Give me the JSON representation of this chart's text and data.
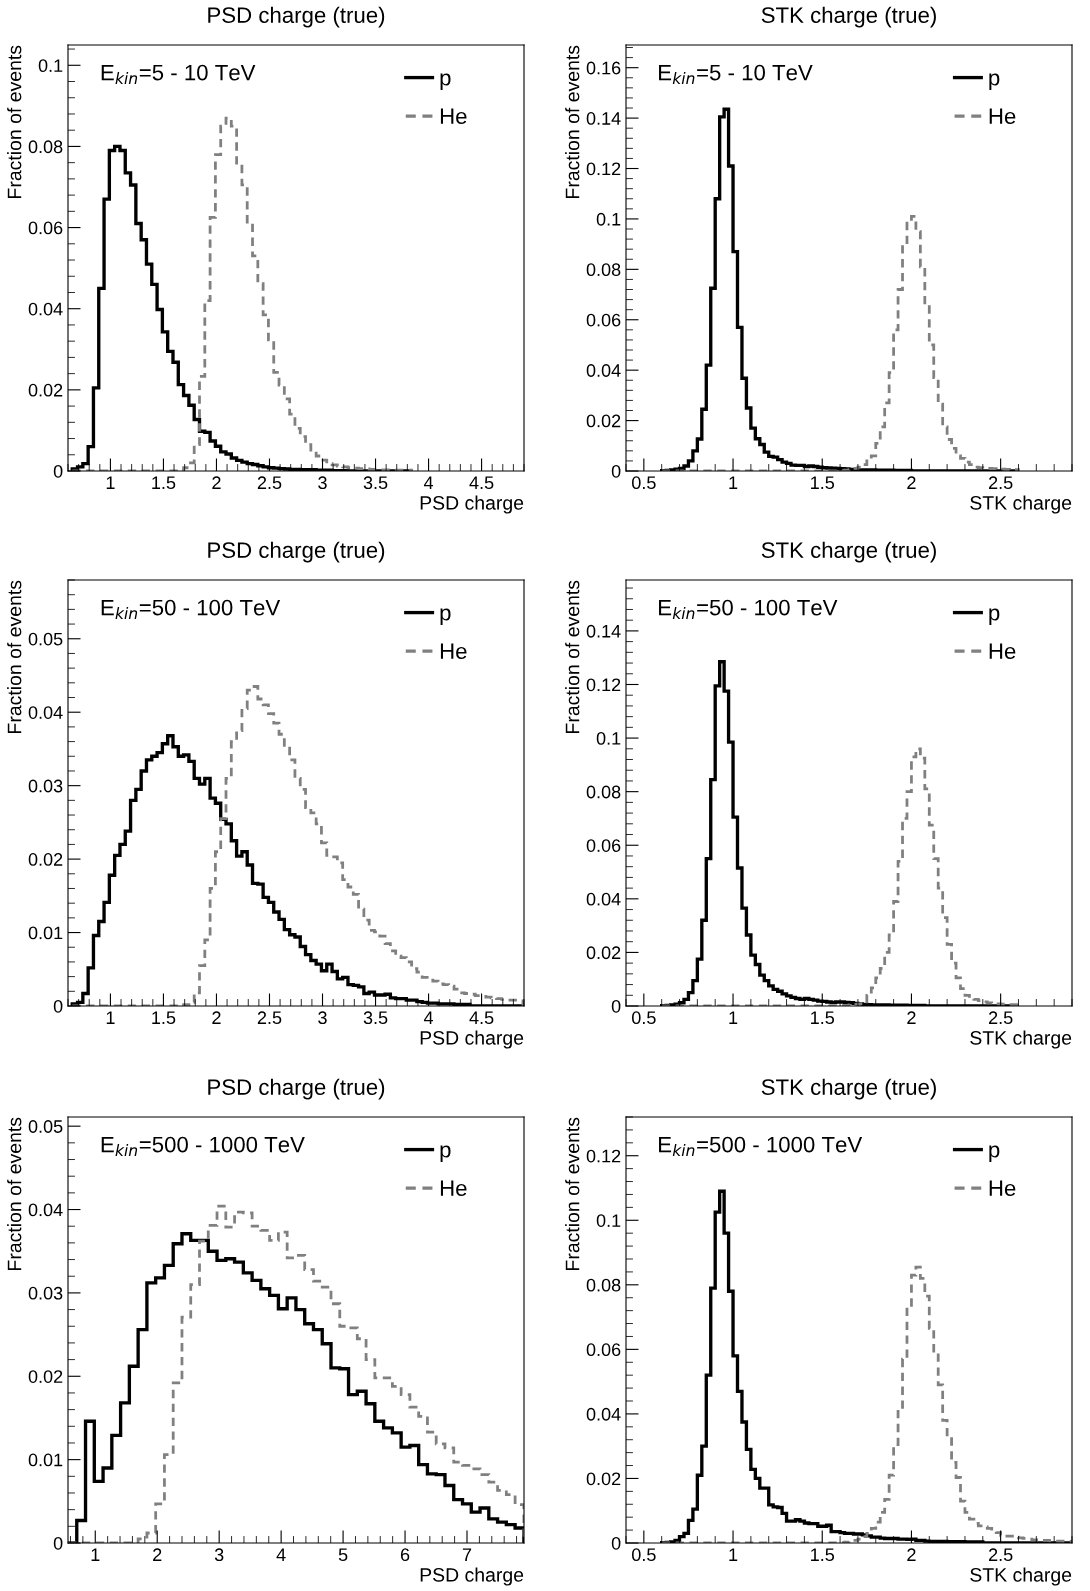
{
  "chart_data": [
    {
      "type": "histogram",
      "title": "PSD charge (true)",
      "xlabel": "PSD charge",
      "ylabel": "Fraction of events",
      "xlim": [
        0.6,
        4.9
      ],
      "ylim": [
        0,
        0.105
      ],
      "xticks": [
        1,
        1.5,
        2,
        2.5,
        3,
        3.5,
        4,
        4.5
      ],
      "yticks": [
        0,
        0.02,
        0.04,
        0.06,
        0.08,
        0.1
      ],
      "legend": "top right",
      "annotations": [
        "E$_{kin}$=5 - 10 TeV"
      ],
      "bins": [
        0.64,
        0.69,
        0.74,
        0.79,
        0.84,
        0.89,
        0.94,
        0.99,
        1.04,
        1.09,
        1.14,
        1.19,
        1.24,
        1.29,
        1.34,
        1.39,
        1.44,
        1.49,
        1.54,
        1.59,
        1.64,
        1.69,
        1.74,
        1.79,
        1.84,
        1.89,
        1.94,
        1.99,
        2.04,
        2.09,
        2.14,
        2.19,
        2.24,
        2.29,
        2.34,
        2.39,
        2.44,
        2.49,
        2.54,
        2.59,
        2.64,
        2.69,
        2.74,
        2.79,
        2.84,
        2.89,
        2.94,
        2.99,
        3.04,
        3.09,
        3.14,
        3.19,
        3.24,
        3.29,
        3.34,
        3.39,
        3.44,
        3.49,
        3.54,
        3.59,
        3.64,
        3.69,
        3.74,
        3.79,
        3.84
      ],
      "series": [
        {
          "name": "p",
          "color": "#000000",
          "line_style": "solid",
          "values": [
            0.0005,
            0.001,
            0.0018,
            0.006,
            0.0205,
            0.045,
            0.067,
            0.079,
            0.08,
            0.079,
            0.0735,
            0.0705,
            0.061,
            0.057,
            0.051,
            0.046,
            0.0398,
            0.0343,
            0.0295,
            0.0268,
            0.0213,
            0.0186,
            0.0162,
            0.0127,
            0.0098,
            0.0095,
            0.0074,
            0.0061,
            0.0047,
            0.0042,
            0.0032,
            0.0026,
            0.0022,
            0.0018,
            0.0016,
            0.0013,
            0.001,
            0.0008,
            0.0007,
            0.0006,
            0.0005,
            0.0004,
            0.0004,
            0.0003,
            0.0003,
            0.0003,
            0.0002,
            0.0002,
            0.0002,
            0.0001,
            0.0001,
            0.0001,
            0,
            0,
            0,
            0,
            0,
            0,
            0,
            0,
            0,
            0,
            0,
            0
          ]
        },
        {
          "name": "He",
          "color": "#808080",
          "line_style": "dashed",
          "values": [
            0,
            0,
            0,
            0,
            0,
            0,
            0,
            0,
            0,
            0,
            0,
            0,
            0,
            0,
            0,
            0,
            0,
            0,
            0,
            0,
            0.0003,
            0.0008,
            0.002,
            0.0065,
            0.0233,
            0.042,
            0.0625,
            0.078,
            0.085,
            0.087,
            0.085,
            0.0755,
            0.0705,
            0.061,
            0.053,
            0.0462,
            0.0385,
            0.0323,
            0.0243,
            0.0212,
            0.0178,
            0.014,
            0.0105,
            0.0085,
            0.0065,
            0.0048,
            0.0037,
            0.0027,
            0.0018,
            0.0015,
            0.0012,
            0.001,
            0.0008,
            0.0007,
            0.0006,
            0.0005,
            0.0004,
            0.0004,
            0.0003,
            0.0003,
            0.0002,
            0.0002,
            0.0002,
            0.0002
          ]
        }
      ]
    },
    {
      "type": "histogram",
      "title": "STK charge (true)",
      "xlabel": "STK charge",
      "ylabel": "Fraction of events",
      "xlim": [
        0.4,
        2.9
      ],
      "ylim": [
        0,
        0.169
      ],
      "xticks": [
        0.5,
        1,
        1.5,
        2,
        2.5
      ],
      "yticks": [
        0,
        0.02,
        0.04,
        0.06,
        0.08,
        0.1,
        0.12,
        0.14,
        0.16
      ],
      "legend": "top right",
      "annotations": [
        "E$_{kin}$=5 - 10 TeV"
      ],
      "bins": [
        0.6,
        0.625,
        0.65,
        0.675,
        0.7,
        0.725,
        0.75,
        0.775,
        0.8,
        0.825,
        0.85,
        0.875,
        0.9,
        0.925,
        0.95,
        0.975,
        1.0,
        1.025,
        1.05,
        1.075,
        1.1,
        1.125,
        1.15,
        1.175,
        1.2,
        1.225,
        1.25,
        1.275,
        1.3,
        1.325,
        1.35,
        1.375,
        1.4,
        1.425,
        1.45,
        1.475,
        1.5,
        1.525,
        1.55,
        1.575,
        1.6,
        1.625,
        1.65,
        1.675,
        1.7,
        1.725,
        1.75,
        1.775,
        1.8,
        1.825,
        1.85,
        1.875,
        1.9,
        1.925,
        1.95,
        1.975,
        2.0,
        2.025,
        2.05,
        2.075,
        2.1,
        2.125,
        2.15,
        2.175,
        2.2,
        2.225,
        2.25,
        2.275,
        2.3,
        2.325,
        2.35,
        2.375,
        2.4,
        2.425,
        2.45,
        2.475,
        2.5,
        2.525,
        2.55,
        2.575,
        2.6
      ],
      "series": [
        {
          "name": "p",
          "color": "#000000",
          "line_style": "solid",
          "values": [
            0.0001,
            0.0002,
            0.0004,
            0.0007,
            0.001,
            0.002,
            0.004,
            0.008,
            0.0127,
            0.0245,
            0.042,
            0.0725,
            0.108,
            0.1405,
            0.1435,
            0.121,
            0.087,
            0.057,
            0.0368,
            0.025,
            0.017,
            0.0128,
            0.0105,
            0.0075,
            0.0058,
            0.0055,
            0.0045,
            0.0035,
            0.003,
            0.0023,
            0.0022,
            0.0022,
            0.0018,
            0.002,
            0.0018,
            0.0015,
            0.0013,
            0.0012,
            0.0011,
            0.001,
            0.0009,
            0.0008,
            0.0006,
            0.0005,
            0.0004,
            0.0004,
            0.0004,
            0.0004,
            0.0003,
            0.0003,
            0.0003,
            0.0003,
            0.0002,
            0.0002,
            0.0002,
            0.0002,
            0,
            0,
            0,
            0,
            0,
            0,
            0,
            0,
            0,
            0,
            0,
            0,
            0,
            0,
            0,
            0,
            0,
            0,
            0,
            0,
            0,
            0,
            0,
            0
          ]
        },
        {
          "name": "He",
          "color": "#808080",
          "line_style": "dashed",
          "values": [
            0,
            0,
            0,
            0,
            0,
            0,
            0,
            0,
            0,
            0,
            0,
            0,
            0,
            0,
            0,
            0,
            0,
            0,
            0,
            0,
            0,
            0,
            0,
            0,
            0,
            0,
            0,
            0,
            0,
            0,
            0,
            0,
            0,
            0,
            0,
            0,
            0,
            0,
            0,
            0,
            0.0001,
            0.0003,
            0.0005,
            0.001,
            0.0015,
            0.0025,
            0.004,
            0.006,
            0.011,
            0.0175,
            0.027,
            0.039,
            0.056,
            0.072,
            0.09,
            0.099,
            0.101,
            0.095,
            0.081,
            0.066,
            0.05,
            0.037,
            0.0265,
            0.0175,
            0.0125,
            0.009,
            0.006,
            0.005,
            0.0035,
            0.0025,
            0.0015,
            0.0013,
            0.0011,
            0.001,
            0.0009,
            0.0008,
            0.0007,
            0.0006,
            0.0005,
            0.0005
          ]
        }
      ]
    },
    {
      "type": "histogram",
      "title": "PSD charge (true)",
      "xlabel": "PSD charge",
      "ylabel": "Fraction of events",
      "xlim": [
        0.6,
        4.9
      ],
      "ylim": [
        0,
        0.058
      ],
      "xticks": [
        1,
        1.5,
        2,
        2.5,
        3,
        3.5,
        4,
        4.5
      ],
      "yticks": [
        0,
        0.01,
        0.02,
        0.03,
        0.04,
        0.05
      ],
      "legend": "top right",
      "annotations": [
        "E$_{kin}$=50 - 100 TeV"
      ],
      "bins": [
        0.64,
        0.69,
        0.74,
        0.79,
        0.84,
        0.89,
        0.94,
        0.99,
        1.04,
        1.09,
        1.14,
        1.19,
        1.24,
        1.29,
        1.34,
        1.39,
        1.44,
        1.49,
        1.54,
        1.59,
        1.64,
        1.69,
        1.74,
        1.79,
        1.84,
        1.89,
        1.94,
        1.99,
        2.04,
        2.09,
        2.14,
        2.19,
        2.24,
        2.29,
        2.34,
        2.39,
        2.44,
        2.49,
        2.54,
        2.59,
        2.64,
        2.69,
        2.74,
        2.79,
        2.84,
        2.89,
        2.94,
        2.99,
        3.04,
        3.09,
        3.14,
        3.19,
        3.24,
        3.29,
        3.34,
        3.39,
        3.44,
        3.49,
        3.54,
        3.59,
        3.64,
        3.69,
        3.74,
        3.79,
        3.84,
        3.89,
        3.94,
        3.99,
        4.04,
        4.09,
        4.14,
        4.19,
        4.24,
        4.29,
        4.34,
        4.39,
        4.44,
        4.49,
        4.54,
        4.59,
        4.64,
        4.69,
        4.74,
        4.79,
        4.84,
        4.89
      ],
      "series": [
        {
          "name": "p",
          "color": "#000000",
          "line_style": "solid",
          "values": [
            0.0003,
            0.0005,
            0.0017,
            0.0052,
            0.0096,
            0.0115,
            0.0141,
            0.0178,
            0.0205,
            0.022,
            0.0238,
            0.028,
            0.0295,
            0.032,
            0.0335,
            0.034,
            0.0345,
            0.0357,
            0.0368,
            0.0353,
            0.034,
            0.0342,
            0.0333,
            0.031,
            0.0302,
            0.031,
            0.0283,
            0.0276,
            0.0254,
            0.0248,
            0.0225,
            0.0204,
            0.021,
            0.0192,
            0.0167,
            0.0166,
            0.0148,
            0.0141,
            0.0128,
            0.0118,
            0.0104,
            0.0097,
            0.0094,
            0.0081,
            0.007,
            0.0062,
            0.0057,
            0.0048,
            0.0057,
            0.0047,
            0.0037,
            0.0039,
            0.0029,
            0.0028,
            0.0026,
            0.0017,
            0.0019,
            0.0015,
            0.0015,
            0.0016,
            0.0011,
            0.001,
            0.001,
            0.0008,
            0.0008,
            0.0006,
            0.0005,
            0.0004,
            0.0004,
            0.0003,
            0.0003,
            0.0003,
            0.0002,
            0.0002,
            0.0002,
            0,
            0,
            0,
            0,
            0,
            0,
            0,
            0,
            0,
            0
          ]
        },
        {
          "name": "He",
          "color": "#808080",
          "line_style": "dashed",
          "values": [
            0,
            0,
            0,
            0,
            0,
            0,
            0,
            0,
            0,
            0,
            0,
            0,
            0,
            0,
            0,
            0,
            0,
            0,
            0,
            0,
            0,
            0.0002,
            0.0005,
            0.0018,
            0.0055,
            0.009,
            0.016,
            0.021,
            0.0255,
            0.031,
            0.036,
            0.0375,
            0.0405,
            0.043,
            0.0435,
            0.0418,
            0.041,
            0.0398,
            0.0385,
            0.037,
            0.0355,
            0.0335,
            0.031,
            0.0295,
            0.027,
            0.0263,
            0.0248,
            0.0222,
            0.0205,
            0.0203,
            0.0195,
            0.0172,
            0.0162,
            0.0152,
            0.0132,
            0.0117,
            0.0103,
            0.0101,
            0.0095,
            0.0085,
            0.0075,
            0.0068,
            0.0066,
            0.006,
            0.0051,
            0.0046,
            0.0039,
            0.0039,
            0.0034,
            0.003,
            0.0029,
            0.0027,
            0.0023,
            0.0018,
            0.0017,
            0.0016,
            0.0014,
            0.0013,
            0.0012,
            0.0011,
            0.001,
            0.0009,
            0.0008,
            0.0008,
            0.0007
          ]
        }
      ]
    },
    {
      "type": "histogram",
      "title": "STK charge (true)",
      "xlabel": "STK charge",
      "ylabel": "Fraction of events",
      "xlim": [
        0.4,
        2.9
      ],
      "ylim": [
        0,
        0.159
      ],
      "xticks": [
        0.5,
        1,
        1.5,
        2,
        2.5
      ],
      "yticks": [
        0,
        0.02,
        0.04,
        0.06,
        0.08,
        0.1,
        0.12,
        0.14
      ],
      "legend": "top right",
      "annotations": [
        "E$_{kin}$=50 - 100 TeV"
      ],
      "bins": [
        0.6,
        0.625,
        0.65,
        0.675,
        0.7,
        0.725,
        0.75,
        0.775,
        0.8,
        0.825,
        0.85,
        0.875,
        0.9,
        0.925,
        0.95,
        0.975,
        1.0,
        1.025,
        1.05,
        1.075,
        1.1,
        1.125,
        1.15,
        1.175,
        1.2,
        1.225,
        1.25,
        1.275,
        1.3,
        1.325,
        1.35,
        1.375,
        1.4,
        1.425,
        1.45,
        1.475,
        1.5,
        1.525,
        1.55,
        1.575,
        1.6,
        1.625,
        1.65,
        1.675,
        1.7,
        1.725,
        1.75,
        1.775,
        1.8,
        1.825,
        1.85,
        1.875,
        1.9,
        1.925,
        1.95,
        1.975,
        2.0,
        2.025,
        2.05,
        2.075,
        2.1,
        2.125,
        2.15,
        2.175,
        2.2,
        2.225,
        2.25,
        2.275,
        2.3,
        2.325,
        2.35,
        2.375,
        2.4,
        2.425,
        2.45,
        2.475,
        2.5,
        2.525,
        2.55,
        2.575,
        2.6
      ],
      "series": [
        {
          "name": "p",
          "color": "#000000",
          "line_style": "solid",
          "values": [
            0.0001,
            0.0002,
            0.0004,
            0.0007,
            0.0012,
            0.0025,
            0.005,
            0.0095,
            0.0175,
            0.032,
            0.055,
            0.0845,
            0.1195,
            0.1285,
            0.1175,
            0.0985,
            0.0705,
            0.0515,
            0.0365,
            0.0265,
            0.019,
            0.0155,
            0.0115,
            0.0095,
            0.0075,
            0.0062,
            0.0055,
            0.0045,
            0.0038,
            0.0032,
            0.0028,
            0.0025,
            0.0028,
            0.0025,
            0.0022,
            0.0018,
            0.0017,
            0.0015,
            0.0013,
            0.0015,
            0.0015,
            0.0013,
            0.0012,
            0.001,
            0.0008,
            0.0006,
            0.0005,
            0.0004,
            0.0004,
            0.0004,
            0.0004,
            0.0003,
            0.0003,
            0.0003,
            0.0003,
            0.0002,
            0.0002,
            0.0002,
            0.0002,
            0,
            0,
            0,
            0,
            0,
            0,
            0,
            0,
            0,
            0,
            0,
            0,
            0,
            0,
            0,
            0,
            0,
            0,
            0,
            0,
            0
          ]
        },
        {
          "name": "He",
          "color": "#808080",
          "line_style": "dashed",
          "values": [
            0,
            0,
            0,
            0,
            0,
            0,
            0,
            0,
            0,
            0,
            0,
            0,
            0,
            0,
            0,
            0,
            0,
            0,
            0,
            0,
            0,
            0,
            0,
            0,
            0,
            0,
            0,
            0,
            0,
            0,
            0,
            0,
            0,
            0,
            0,
            0,
            0,
            0,
            0,
            0,
            0.0001,
            0.0002,
            0.0004,
            0.0006,
            0.0008,
            0.0015,
            0.004,
            0.0068,
            0.0105,
            0.014,
            0.02,
            0.0265,
            0.039,
            0.054,
            0.07,
            0.08,
            0.093,
            0.096,
            0.0925,
            0.081,
            0.0675,
            0.055,
            0.044,
            0.033,
            0.023,
            0.016,
            0.0105,
            0.0065,
            0.004,
            0.0028,
            0.0025,
            0.002,
            0.0015,
            0.0012,
            0.001,
            0.0008,
            0.0007,
            0.0006,
            0.0005,
            0.0005
          ]
        }
      ]
    },
    {
      "type": "histogram",
      "title": "PSD charge (true)",
      "xlabel": "PSD charge",
      "ylabel": "Fraction of events",
      "xlim": [
        0.56,
        7.92
      ],
      "ylim": [
        0,
        0.0511
      ],
      "xticks": [
        1,
        2,
        3,
        4,
        5,
        6,
        7
      ],
      "yticks": [
        0,
        0.01,
        0.02,
        0.03,
        0.04,
        0.05
      ],
      "legend": "top right",
      "annotations": [
        "E$_{kin}$=500 - 1000 TeV"
      ],
      "bins": [
        0.56,
        0.7015,
        0.843,
        0.9845,
        1.126,
        1.2675,
        1.409,
        1.5505,
        1.692,
        1.8335,
        1.975,
        2.1165,
        2.258,
        2.3995,
        2.541,
        2.6825,
        2.824,
        2.9655,
        3.107,
        3.2485,
        3.39,
        3.5315,
        3.673,
        3.8145,
        3.956,
        4.0975,
        4.239,
        4.3805,
        4.522,
        4.6635,
        4.805,
        4.9465,
        5.088,
        5.2295,
        5.371,
        5.5125,
        5.654,
        5.7955,
        5.937,
        6.0785,
        6.22,
        6.3615,
        6.503,
        6.6445,
        6.786,
        6.9275,
        7.069,
        7.2105,
        7.352,
        7.4935,
        7.635,
        7.7765,
        7.918
      ],
      "series": [
        {
          "name": "p",
          "color": "#000000",
          "line_style": "solid",
          "values": [
            0,
            0.0027,
            0.0146,
            0.0074,
            0.009,
            0.0129,
            0.0168,
            0.0212,
            0.0256,
            0.0312,
            0.0318,
            0.0333,
            0.0359,
            0.0371,
            0.0363,
            0.0363,
            0.035,
            0.0339,
            0.0341,
            0.0337,
            0.0324,
            0.0315,
            0.0305,
            0.0297,
            0.0281,
            0.0294,
            0.028,
            0.0263,
            0.0256,
            0.0239,
            0.021,
            0.0209,
            0.0178,
            0.0182,
            0.0167,
            0.0146,
            0.0138,
            0.0132,
            0.0115,
            0.0117,
            0.0094,
            0.0083,
            0.0082,
            0.0069,
            0.0052,
            0.0047,
            0.0037,
            0.0042,
            0.0029,
            0.0025,
            0.0022,
            0.0018
          ]
        },
        {
          "name": "He",
          "color": "#808080",
          "line_style": "dashed",
          "values": [
            0,
            0,
            0,
            0,
            0,
            0,
            0,
            0,
            0.0005,
            0.0012,
            0.0047,
            0.0106,
            0.0192,
            0.0271,
            0.031,
            0.0362,
            0.0381,
            0.0404,
            0.0379,
            0.0397,
            0.0396,
            0.038,
            0.0375,
            0.0363,
            0.0373,
            0.0342,
            0.0345,
            0.0328,
            0.0314,
            0.0307,
            0.0287,
            0.026,
            0.0258,
            0.0245,
            0.022,
            0.0198,
            0.0198,
            0.0188,
            0.0178,
            0.0163,
            0.0152,
            0.0133,
            0.0119,
            0.0114,
            0.0097,
            0.0093,
            0.0089,
            0.0082,
            0.0073,
            0.0063,
            0.0058,
            0.0046
          ]
        }
      ]
    },
    {
      "type": "histogram",
      "title": "STK charge (true)",
      "xlabel": "STK charge",
      "ylabel": "Fraction of events",
      "xlim": [
        0.4,
        2.9
      ],
      "ylim": [
        0,
        0.132
      ],
      "xticks": [
        0.5,
        1,
        1.5,
        2,
        2.5
      ],
      "yticks": [
        0,
        0.02,
        0.04,
        0.06,
        0.08,
        0.1,
        0.12
      ],
      "legend": "top right",
      "annotations": [
        "E$_{kin}$=500 - 1000 TeV"
      ],
      "bins": [
        0.6,
        0.625,
        0.65,
        0.675,
        0.7,
        0.725,
        0.75,
        0.775,
        0.8,
        0.825,
        0.85,
        0.875,
        0.9,
        0.925,
        0.95,
        0.975,
        1.0,
        1.025,
        1.05,
        1.075,
        1.1,
        1.125,
        1.15,
        1.175,
        1.2,
        1.225,
        1.25,
        1.275,
        1.3,
        1.325,
        1.35,
        1.375,
        1.4,
        1.425,
        1.45,
        1.475,
        1.5,
        1.525,
        1.55,
        1.575,
        1.6,
        1.625,
        1.65,
        1.675,
        1.7,
        1.725,
        1.75,
        1.775,
        1.8,
        1.825,
        1.85,
        1.875,
        1.9,
        1.925,
        1.95,
        1.975,
        2.0,
        2.025,
        2.05,
        2.075,
        2.1,
        2.125,
        2.15,
        2.175,
        2.2,
        2.225,
        2.25,
        2.275,
        2.3,
        2.325,
        2.35,
        2.375,
        2.4,
        2.425,
        2.45,
        2.475,
        2.5,
        2.525,
        2.55,
        2.575,
        2.6,
        2.625,
        2.65,
        2.675,
        2.7,
        2.725,
        2.75,
        2.775,
        2.8,
        2.825,
        2.85,
        2.875,
        2.9
      ],
      "series": [
        {
          "name": "p",
          "color": "#000000",
          "line_style": "solid",
          "values": [
            0.0001,
            0.0002,
            0.0003,
            0.0008,
            0.002,
            0.003,
            0.007,
            0.0105,
            0.021,
            0.03,
            0.052,
            0.079,
            0.1025,
            0.109,
            0.096,
            0.078,
            0.058,
            0.047,
            0.0375,
            0.029,
            0.0228,
            0.02,
            0.017,
            0.017,
            0.0118,
            0.0112,
            0.011,
            0.0092,
            0.0068,
            0.0068,
            0.0072,
            0.0068,
            0.0062,
            0.006,
            0.006,
            0.0052,
            0.0052,
            0.0055,
            0.0035,
            0.0035,
            0.0032,
            0.003,
            0.003,
            0.0028,
            0.0028,
            0.0025,
            0.0022,
            0.0018,
            0.0018,
            0.0015,
            0.0014,
            0.0014,
            0.0014,
            0.0012,
            0.0012,
            0.0011,
            0.0012,
            0.0008,
            0.0008,
            0.0006,
            0.0005,
            0.0005,
            0.0005,
            0.0005,
            0.0004,
            0.0004,
            0.0004,
            0.0004,
            0.0003,
            0.0003,
            0.0003,
            0.0003,
            0,
            0,
            0,
            0,
            0,
            0,
            0,
            0,
            0,
            0,
            0,
            0,
            0,
            0,
            0,
            0,
            0,
            0,
            0,
            0
          ]
        },
        {
          "name": "He",
          "color": "#808080",
          "line_style": "dashed",
          "values": [
            0,
            0,
            0,
            0,
            0,
            0,
            0,
            0,
            0,
            0,
            0,
            0,
            0,
            0,
            0,
            0,
            0,
            0,
            0,
            0,
            0,
            0,
            0,
            0,
            0,
            0,
            0,
            0,
            0,
            0,
            0,
            0,
            0,
            0,
            0,
            0,
            0,
            0,
            0,
            0,
            0.0001,
            0.0003,
            0.0005,
            0.0008,
            0.0012,
            0.002,
            0.003,
            0.0045,
            0.0065,
            0.0095,
            0.0135,
            0.021,
            0.0305,
            0.042,
            0.057,
            0.073,
            0.083,
            0.0855,
            0.082,
            0.0765,
            0.0665,
            0.059,
            0.049,
            0.038,
            0.033,
            0.025,
            0.0203,
            0.013,
            0.0095,
            0.0074,
            0.0061,
            0.0053,
            0.005,
            0.0045,
            0.0038,
            0.0032,
            0.0024,
            0.0021,
            0.0021,
            0.0018,
            0.0016,
            0.0014,
            0.0012,
            0.001,
            0.001,
            0.0008,
            0.0008,
            0.0007,
            0.0006,
            0.0006,
            0.0005,
            0.0005
          ]
        }
      ]
    }
  ]
}
